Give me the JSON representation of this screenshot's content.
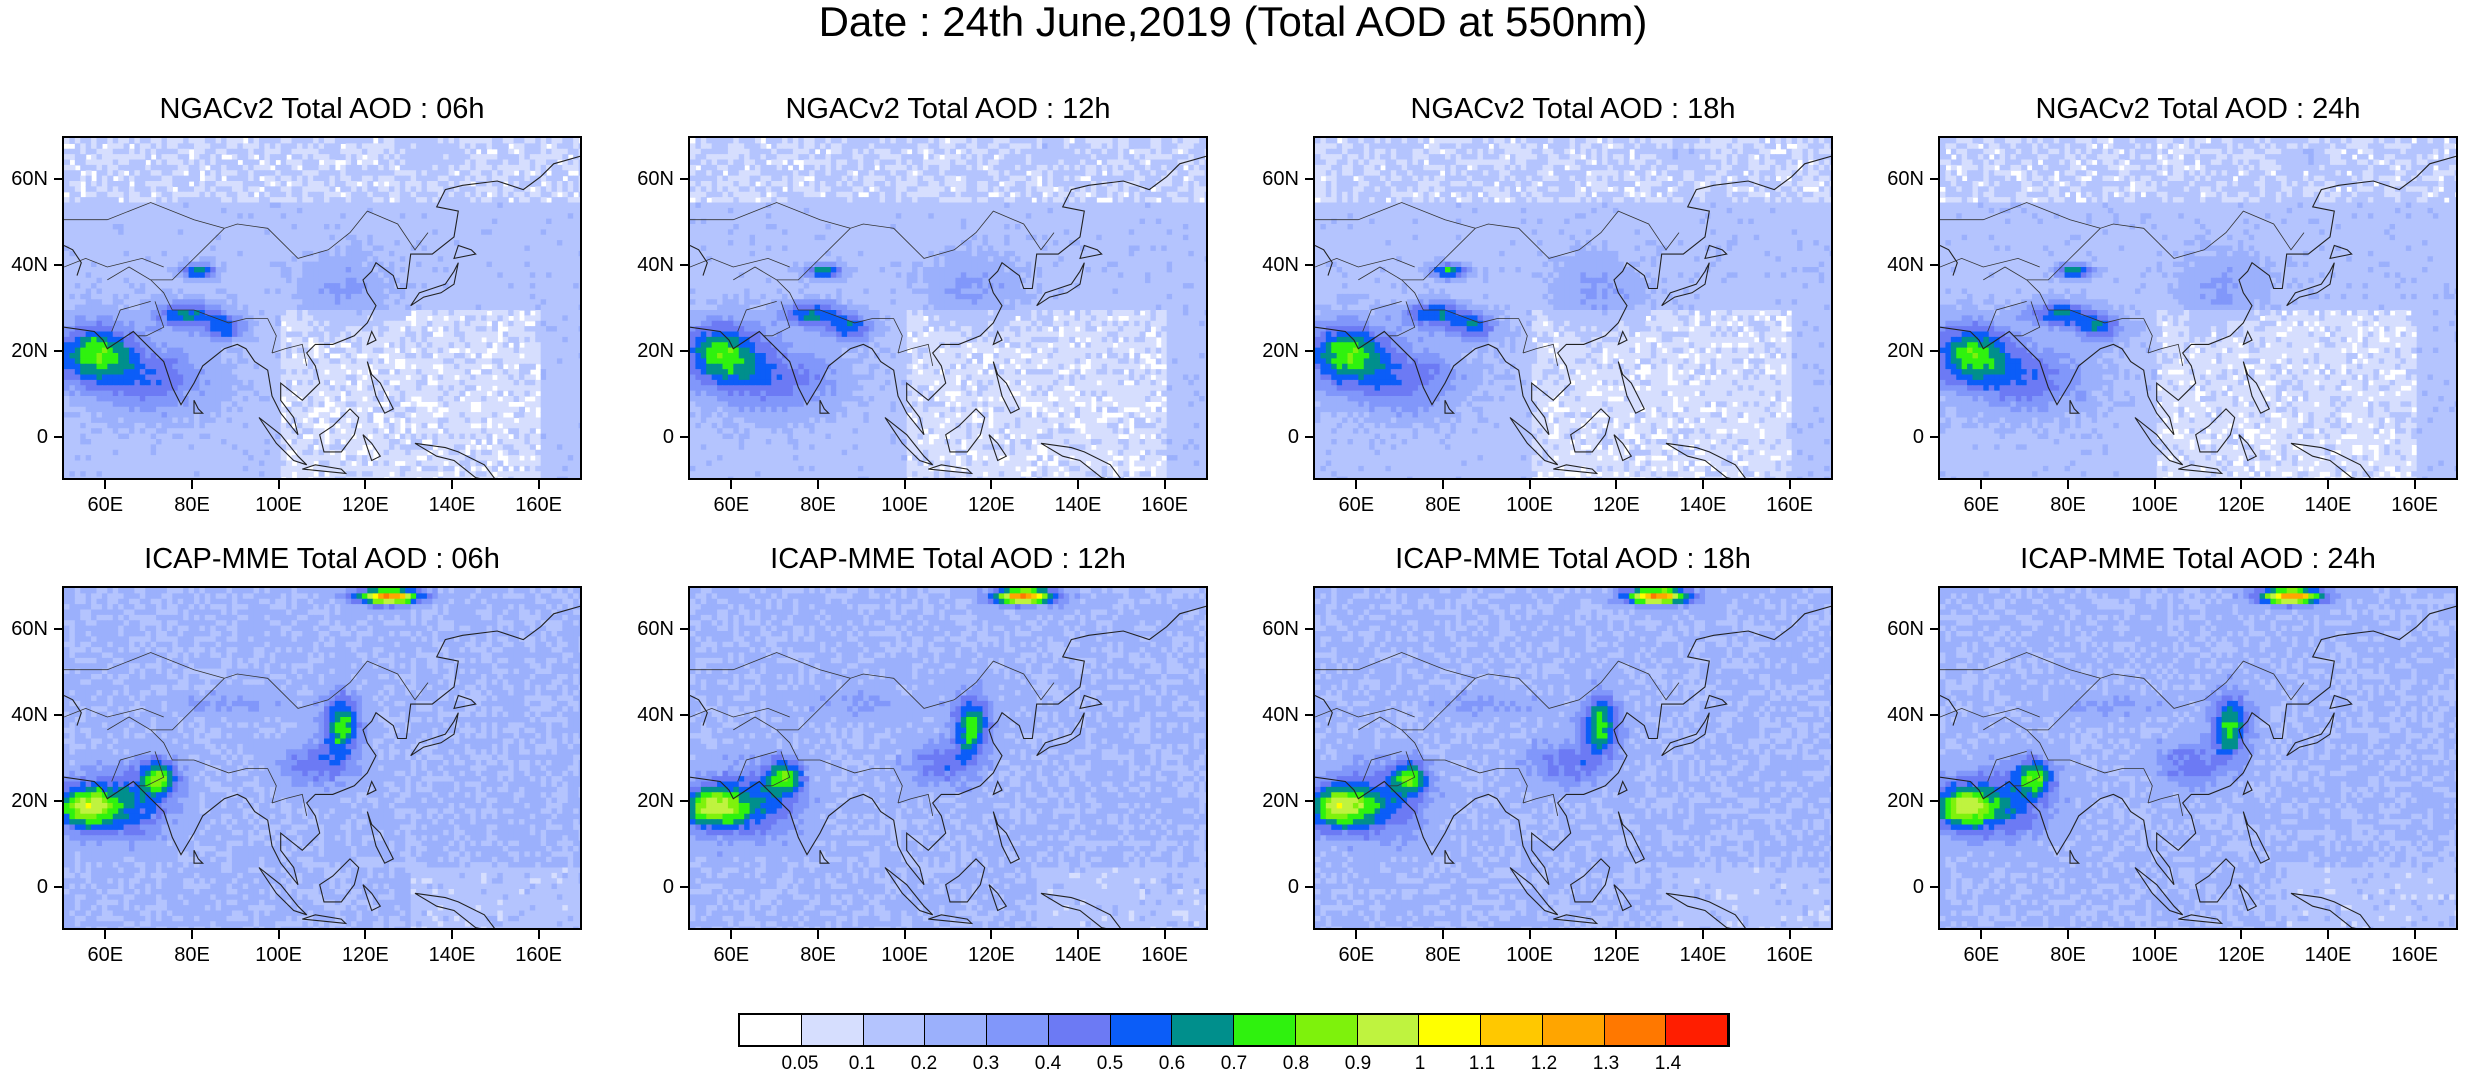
{
  "title": "Date : 24th June,2019 (Total AOD at 550nm)",
  "panels": [
    {
      "title": "NGACv2 Total AOD : 06h",
      "model": "NGACv2"
    },
    {
      "title": "NGACv2 Total AOD : 12h",
      "model": "NGACv2"
    },
    {
      "title": "NGACv2 Total AOD : 18h",
      "model": "NGACv2"
    },
    {
      "title": "NGACv2 Total AOD : 24h",
      "model": "NGACv2"
    },
    {
      "title": "ICAP-MME Total AOD : 06h",
      "model": "ICAP-MME"
    },
    {
      "title": "ICAP-MME Total AOD : 12h",
      "model": "ICAP-MME"
    },
    {
      "title": "ICAP-MME Total AOD : 18h",
      "model": "ICAP-MME"
    },
    {
      "title": "ICAP-MME Total AOD : 24h",
      "model": "ICAP-MME"
    }
  ],
  "lat_labels": [
    "60N",
    "40N",
    "20N",
    "0"
  ],
  "lon_labels": [
    "60E",
    "80E",
    "100E",
    "120E",
    "140E",
    "160E"
  ],
  "colorbar": {
    "labels": [
      "0.05",
      "0.1",
      "0.2",
      "0.3",
      "0.4",
      "0.5",
      "0.6",
      "0.7",
      "0.8",
      "0.9",
      "1",
      "1.1",
      "1.2",
      "1.3",
      "1.4"
    ],
    "colors": [
      "#ffffff",
      "#d6defe",
      "#b4c4fe",
      "#9bb0fc",
      "#8197fa",
      "#6c7af4",
      "#0b5df8",
      "#008f8c",
      "#2ff20e",
      "#7ef20c",
      "#bff33f",
      "#ffff00",
      "#ffc800",
      "#ffa500",
      "#ff7800",
      "#ff1e00"
    ]
  }
}
